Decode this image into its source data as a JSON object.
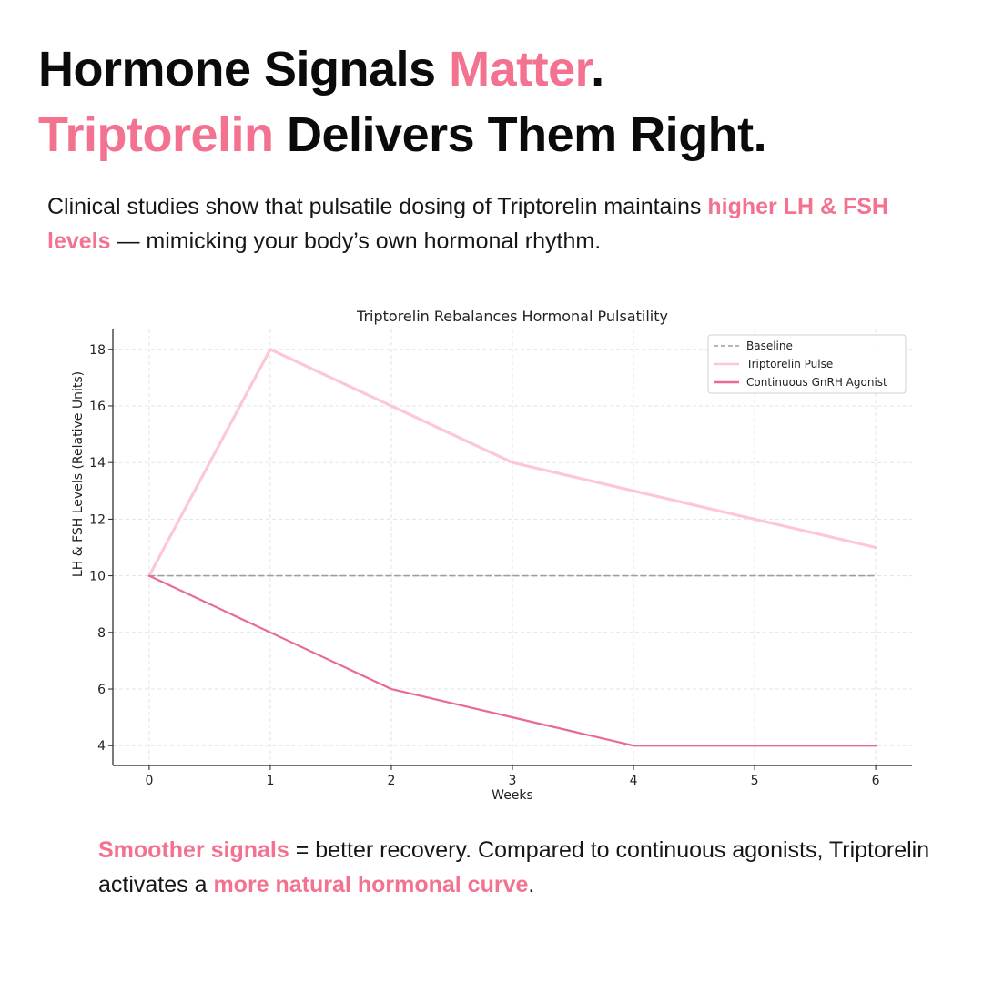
{
  "headline": {
    "line1_a": "Hormone Signals ",
    "line1_b": "Matter",
    "line1_c": ".",
    "line2_a": "Triptorelin",
    "line2_b": " Delivers Them Right."
  },
  "intro": {
    "a": "Clinical studies show that pulsatile dosing of Triptorelin maintains ",
    "b": "higher LH & FSH levels",
    "c": " — mimicking your body’s own hormonal rhythm."
  },
  "outro": {
    "a": "Smoother signals",
    "b": " = better recovery. Compared to continuous agonists, Triptorelin activates a ",
    "c": "more natural hormonal curve",
    "d": "."
  },
  "colors": {
    "accent": "#f2728f",
    "baseline": "#9e9e9e",
    "pulse": "#fcc8d3",
    "continuous": "#e8699a"
  },
  "chart_data": {
    "type": "line",
    "title": "Triptorelin Rebalances Hormonal Pulsatility",
    "xlabel": "Weeks",
    "ylabel": "LH & FSH Levels (Relative Units)",
    "x": [
      0,
      1,
      2,
      3,
      4,
      5,
      6
    ],
    "xlim": [
      -0.3,
      6.3
    ],
    "ylim": [
      3.3,
      18.7
    ],
    "xticks": [
      0,
      1,
      2,
      3,
      4,
      5,
      6
    ],
    "yticks": [
      4,
      6,
      8,
      10,
      12,
      14,
      16,
      18
    ],
    "grid": true,
    "legend": "top-right",
    "series": [
      {
        "name": "Baseline",
        "values": [
          10,
          10,
          10,
          10,
          10,
          10,
          10
        ],
        "style": "dashed",
        "color": "#9e9e9e"
      },
      {
        "name": "Triptorelin Pulse",
        "values": [
          10,
          18,
          16,
          14,
          13,
          12,
          11
        ],
        "style": "solid",
        "color": "#fcc8d3"
      },
      {
        "name": "Continuous GnRH Agonist",
        "values": [
          10,
          8,
          6,
          5,
          4,
          4,
          4
        ],
        "style": "solid",
        "color": "#e8699a"
      }
    ]
  }
}
